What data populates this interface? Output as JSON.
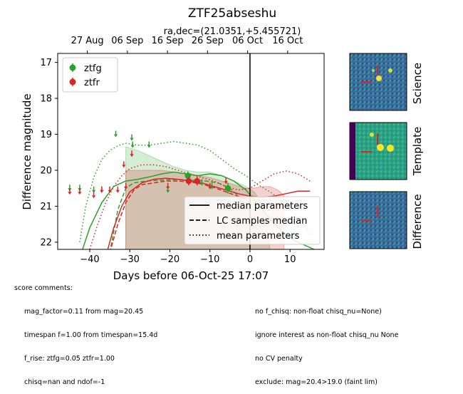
{
  "chart_data": {
    "type": "scatter",
    "title": "ZTF25abseshu",
    "subtitle": "ra,dec=(21.0351,+5.455721)",
    "xlabel": "Days before 06-Oct-25 17:07",
    "ylabel": "Difference magnitude",
    "xlim": [
      -48,
      18.5
    ],
    "ylim": [
      22.2,
      16.75
    ],
    "y_inverted": true,
    "x_ticks": [
      -40,
      -30,
      -20,
      -10,
      0,
      10
    ],
    "y_ticks": [
      17,
      18,
      19,
      20,
      21,
      22
    ],
    "top_axis_ticks": [
      {
        "x": -40.6,
        "label": "27 Aug"
      },
      {
        "x": -30.6,
        "label": "06 Sep"
      },
      {
        "x": -20.6,
        "label": "16 Sep"
      },
      {
        "x": -10.6,
        "label": "26 Sep"
      },
      {
        "x": -0.6,
        "label": "06 Oct"
      },
      {
        "x": 9.4,
        "label": "16 Oct"
      }
    ],
    "vline_x": 0,
    "colors": {
      "ztfg": "#2ca02c",
      "ztfr": "#d62728"
    },
    "legend_bands": [
      "ztfg",
      "ztfr"
    ],
    "legend_lines": [
      "median parameters",
      "LC samples median",
      "mean parameters"
    ],
    "detections": {
      "ztfg": [
        {
          "x": -15.5,
          "y": 20.15,
          "err": 0.12
        },
        {
          "x": -5.5,
          "y": 20.5,
          "err": 0.15
        }
      ],
      "ztfr": [
        {
          "x": -15.3,
          "y": 20.3,
          "err": 0.12
        },
        {
          "x": -13.2,
          "y": 20.3,
          "err": 0.12
        }
      ]
    },
    "upper_limits": {
      "ztfg": [
        {
          "x": -45,
          "y": 20.5
        },
        {
          "x": -42.5,
          "y": 20.5
        },
        {
          "x": -39,
          "y": 20.55
        },
        {
          "x": -37,
          "y": 20.55
        },
        {
          "x": -33.5,
          "y": 19.0
        },
        {
          "x": -29.5,
          "y": 19.1
        },
        {
          "x": -29.3,
          "y": 19.3
        },
        {
          "x": -25.2,
          "y": 19.3
        },
        {
          "x": -20.5,
          "y": 20.55
        },
        {
          "x": -12,
          "y": 20.35
        },
        {
          "x": -9.5,
          "y": 20.45
        }
      ],
      "ztfr": [
        {
          "x": -45,
          "y": 20.6
        },
        {
          "x": -42.5,
          "y": 20.6
        },
        {
          "x": -39,
          "y": 20.7
        },
        {
          "x": -37,
          "y": 20.55
        },
        {
          "x": -35,
          "y": 20.55
        },
        {
          "x": -33,
          "y": 20.55
        },
        {
          "x": -31,
          "y": 20.45
        },
        {
          "x": -31.5,
          "y": 19.85
        },
        {
          "x": -29.5,
          "y": 19.55
        },
        {
          "x": -20.5,
          "y": 20.45
        },
        {
          "x": -10,
          "y": 20.45
        },
        {
          "x": -6,
          "y": 20.3
        }
      ]
    },
    "models": {
      "ztfg": {
        "median": [
          [
            -43,
            22.6
          ],
          [
            -40,
            21.6
          ],
          [
            -37,
            20.9
          ],
          [
            -34,
            20.45
          ],
          [
            -31,
            20.3
          ],
          [
            -28,
            20.25
          ],
          [
            -25,
            20.18
          ],
          [
            -22,
            20.1
          ],
          [
            -19,
            20.05
          ],
          [
            -16,
            20.1
          ],
          [
            -13,
            20.15
          ],
          [
            -10,
            20.1
          ],
          [
            -7,
            20.15
          ],
          [
            -4,
            20.3
          ],
          [
            -1,
            20.55
          ],
          [
            2,
            20.95
          ],
          [
            5,
            21.35
          ],
          [
            8,
            21.7
          ],
          [
            11,
            21.95
          ],
          [
            14,
            22.1
          ],
          [
            16,
            22.2
          ]
        ],
        "samples": [
          [
            -35,
            22.3
          ],
          [
            -33,
            21.1
          ],
          [
            -31,
            20.5
          ],
          [
            -29,
            20.35
          ],
          [
            -26,
            20.3
          ],
          [
            -23,
            20.28
          ],
          [
            -20,
            20.26
          ],
          [
            -17,
            20.26
          ],
          [
            -14,
            20.28
          ],
          [
            -11,
            20.3
          ],
          [
            -8,
            20.35
          ],
          [
            -5,
            20.5
          ],
          [
            -3,
            20.7
          ],
          [
            -1.5,
            20.95
          ]
        ],
        "mean": [
          [
            -42.5,
            22.0
          ],
          [
            -41,
            21.0
          ],
          [
            -39,
            20.2
          ],
          [
            -37,
            19.7
          ],
          [
            -35,
            19.45
          ],
          [
            -33,
            19.32
          ],
          [
            -31,
            19.25
          ],
          [
            -28,
            19.3
          ],
          [
            -25,
            19.3
          ],
          [
            -22,
            19.25
          ],
          [
            -19,
            19.2
          ],
          [
            -16,
            19.25
          ],
          [
            -13,
            19.3
          ],
          [
            -10,
            19.45
          ],
          [
            -7,
            19.7
          ],
          [
            -4,
            19.95
          ],
          [
            -1,
            20.15
          ],
          [
            2,
            20.4
          ],
          [
            5,
            20.6
          ],
          [
            8,
            20.85
          ],
          [
            11,
            21.2
          ],
          [
            14,
            21.6
          ],
          [
            15.5,
            21.8
          ]
        ],
        "band_upper": [
          [
            -31,
            19.35
          ],
          [
            -28,
            19.45
          ],
          [
            -25,
            19.6
          ],
          [
            -22,
            19.75
          ],
          [
            -19,
            19.9
          ],
          [
            -16,
            20.0
          ],
          [
            -13,
            20.05
          ],
          [
            -10,
            20.05
          ],
          [
            -7,
            20.15
          ],
          [
            -4,
            20.3
          ],
          [
            -1,
            20.45
          ],
          [
            1,
            20.6
          ],
          [
            2,
            20.75
          ],
          [
            3,
            21.0
          ],
          [
            4,
            21.4
          ],
          [
            5,
            22.2
          ]
        ],
        "band_lower": [
          [
            5,
            22.2
          ],
          [
            -31,
            22.2
          ]
        ]
      },
      "ztfr": {
        "median": [
          [
            -36,
            22.4
          ],
          [
            -34,
            21.6
          ],
          [
            -32,
            21.0
          ],
          [
            -30,
            20.6
          ],
          [
            -27,
            20.35
          ],
          [
            -24,
            20.25
          ],
          [
            -21,
            20.22
          ],
          [
            -18,
            20.25
          ],
          [
            -15,
            20.3
          ],
          [
            -12,
            20.35
          ],
          [
            -9,
            20.45
          ],
          [
            -6,
            20.55
          ],
          [
            -3,
            20.65
          ],
          [
            0,
            20.72
          ],
          [
            3,
            20.75
          ],
          [
            6,
            20.72
          ],
          [
            9,
            20.65
          ],
          [
            12,
            20.58
          ],
          [
            15,
            20.58
          ]
        ],
        "samples": [
          [
            -35,
            22.3
          ],
          [
            -33,
            21.5
          ],
          [
            -31,
            20.9
          ],
          [
            -29,
            20.55
          ],
          [
            -27,
            20.4
          ],
          [
            -24,
            20.35
          ],
          [
            -21,
            20.3
          ],
          [
            -18,
            20.3
          ],
          [
            -15,
            20.32
          ],
          [
            -12,
            20.38
          ],
          [
            -9,
            20.48
          ],
          [
            -6,
            20.6
          ],
          [
            -3,
            20.72
          ],
          [
            -1,
            20.8
          ]
        ],
        "mean": [
          [
            -40,
            22.2
          ],
          [
            -38,
            21.5
          ],
          [
            -36,
            20.9
          ],
          [
            -34,
            20.45
          ],
          [
            -32,
            20.15
          ],
          [
            -30,
            19.95
          ],
          [
            -27,
            19.85
          ],
          [
            -24,
            19.85
          ],
          [
            -21,
            19.9
          ],
          [
            -18,
            20.0
          ],
          [
            -15,
            20.1
          ],
          [
            -12,
            20.2
          ],
          [
            -9,
            20.3
          ],
          [
            -6,
            20.45
          ],
          [
            -3,
            20.55
          ],
          [
            0,
            20.5
          ],
          [
            3,
            20.3
          ],
          [
            6,
            20.1
          ],
          [
            9,
            20.02
          ],
          [
            12,
            20.1
          ],
          [
            15,
            20.3
          ]
        ],
        "band_upper": [
          [
            -31,
            20.0
          ],
          [
            -28,
            20.0
          ],
          [
            -25,
            20.0
          ],
          [
            -22,
            20.0
          ],
          [
            -19,
            20.05
          ],
          [
            -16,
            20.1
          ],
          [
            -13,
            20.15
          ],
          [
            -10,
            20.2
          ],
          [
            -7,
            20.3
          ],
          [
            -4,
            20.4
          ],
          [
            -1,
            20.5
          ],
          [
            1,
            20.5
          ],
          [
            3,
            20.45
          ],
          [
            5,
            20.45
          ],
          [
            7,
            20.55
          ],
          [
            8.5,
            20.7
          ]
        ],
        "band_lower": [
          [
            8.5,
            22.2
          ],
          [
            -31,
            22.2
          ]
        ]
      }
    }
  },
  "thumbnails": [
    {
      "label": "Science"
    },
    {
      "label": "Template"
    },
    {
      "label": "Difference"
    }
  ],
  "comments": {
    "header": "score comments:",
    "left": [
      "mag_factor=0.11 from mag=20.45",
      "timespan f=1.00 from timespan=15.4d",
      "f_rise: ztfg=0.05 ztfr=1.00",
      "chisq=nan and ndof=-1"
    ],
    "right": [
      "no f_chisq: non-float chisq_nu=None)",
      "ignore interest as non-float chisq_nu None",
      "no CV penalty",
      "exclude: mag=20.4>19.0 (faint lim)"
    ]
  }
}
